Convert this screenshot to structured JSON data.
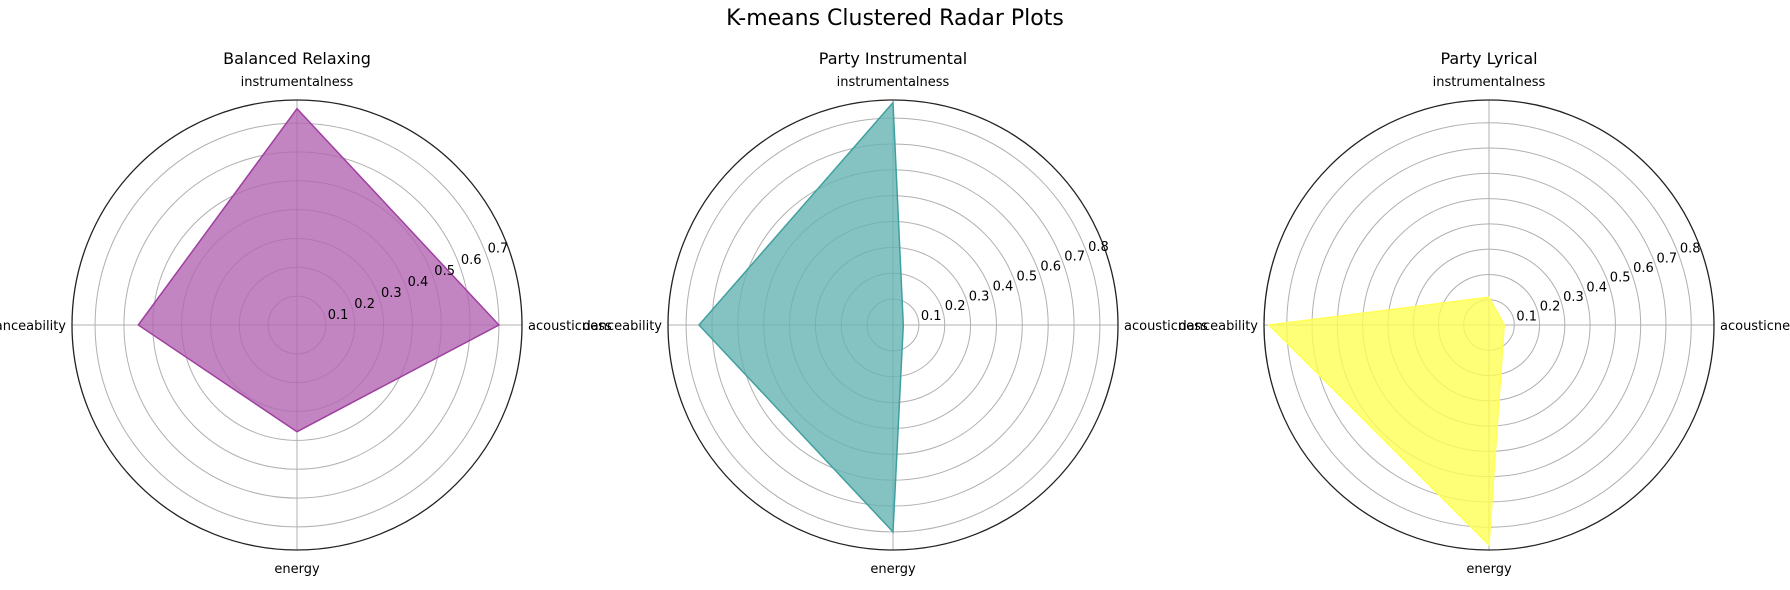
{
  "figure_title": "K-means Clustered Radar Plots",
  "chart_data": [
    {
      "type": "radar",
      "title": "Balanced Relaxing",
      "axes": [
        "acousticness",
        "instrumentalness",
        "danceability",
        "energy"
      ],
      "values": [
        0.7,
        0.75,
        0.55,
        0.37
      ],
      "rmax": 0.78,
      "rticks": [
        0.1,
        0.2,
        0.3,
        0.4,
        0.5,
        0.6,
        0.7
      ],
      "fill_color": "#b366b3",
      "edge_color": "#a040a0",
      "grid": true
    },
    {
      "type": "radar",
      "title": "Party Instrumental",
      "axes": [
        "acousticness",
        "instrumentalness",
        "danceability",
        "energy"
      ],
      "values": [
        0.04,
        0.86,
        0.75,
        0.8
      ],
      "rmax": 0.87,
      "rticks": [
        0.1,
        0.2,
        0.3,
        0.4,
        0.5,
        0.6,
        0.7,
        0.8
      ],
      "fill_color": "#66b3b3",
      "edge_color": "#40a0a0",
      "grid": true
    },
    {
      "type": "radar",
      "title": "Party Lyrical",
      "axes": [
        "acousticness",
        "instrumentalness",
        "danceability",
        "energy"
      ],
      "values": [
        0.06,
        0.11,
        0.87,
        0.87
      ],
      "rmax": 0.89,
      "rticks": [
        0.1,
        0.2,
        0.3,
        0.4,
        0.5,
        0.6,
        0.7,
        0.8
      ],
      "fill_color": "#ffff55",
      "edge_color": "#ffff55",
      "grid": true
    }
  ]
}
